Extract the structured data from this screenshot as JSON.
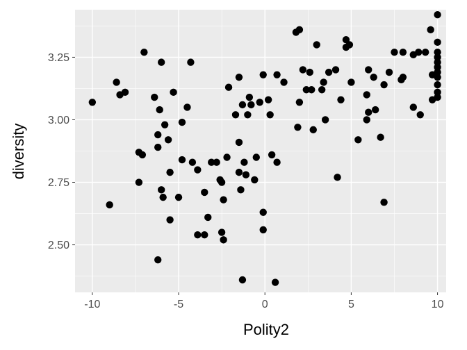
{
  "chart_data": {
    "type": "scatter",
    "xlabel": "Polity2",
    "ylabel": "diversity",
    "xlim": [
      -11,
      10.5
    ],
    "ylim": [
      2.31,
      3.44
    ],
    "x_ticks": [
      -10,
      -5,
      0,
      5,
      10
    ],
    "x_tick_labels": [
      "-10",
      "-5",
      "0",
      "5",
      "10"
    ],
    "y_ticks": [
      2.5,
      2.75,
      3.0,
      3.25
    ],
    "y_tick_labels": [
      "2.50",
      "2.75",
      "3.00",
      "3.25"
    ],
    "grid": true,
    "colors": {
      "panel": "#ebebeb",
      "grid_major": "#ffffff",
      "point": "#000000",
      "tick": "#333333"
    },
    "points": [
      [
        -10,
        3.07
      ],
      [
        -9,
        2.66
      ],
      [
        -8.6,
        3.15
      ],
      [
        -8.4,
        3.1
      ],
      [
        -8.1,
        3.11
      ],
      [
        -7.3,
        2.87
      ],
      [
        -7.3,
        2.75
      ],
      [
        -7.1,
        2.86
      ],
      [
        -7,
        3.27
      ],
      [
        -6.4,
        3.09
      ],
      [
        -6.2,
        2.94
      ],
      [
        -6.2,
        2.89
      ],
      [
        -6.2,
        2.44
      ],
      [
        -6.1,
        3.04
      ],
      [
        -6,
        3.23
      ],
      [
        -6,
        2.72
      ],
      [
        -5.9,
        2.69
      ],
      [
        -5.8,
        2.98
      ],
      [
        -5.6,
        2.92
      ],
      [
        -5.5,
        2.79
      ],
      [
        -5.5,
        2.6
      ],
      [
        -5.3,
        3.11
      ],
      [
        -5,
        2.69
      ],
      [
        -4.8,
        2.99
      ],
      [
        -4.8,
        2.84
      ],
      [
        -4.5,
        3.05
      ],
      [
        -4.3,
        3.23
      ],
      [
        -4.2,
        2.83
      ],
      [
        -3.9,
        2.8
      ],
      [
        -3.9,
        2.54
      ],
      [
        -3.5,
        2.71
      ],
      [
        -3.5,
        2.54
      ],
      [
        -3.3,
        2.61
      ],
      [
        -3.1,
        2.83
      ],
      [
        -2.8,
        2.83
      ],
      [
        -2.6,
        2.76
      ],
      [
        -2.5,
        2.75
      ],
      [
        -2.5,
        2.55
      ],
      [
        -2.4,
        2.68
      ],
      [
        -2.4,
        2.52
      ],
      [
        -2.2,
        2.85
      ],
      [
        -2.1,
        3.13
      ],
      [
        -1.7,
        3.02
      ],
      [
        -1.5,
        2.91
      ],
      [
        -1.5,
        2.79
      ],
      [
        -1.5,
        3.17
      ],
      [
        -1.4,
        2.72
      ],
      [
        -1.3,
        3.06
      ],
      [
        -1.3,
        2.36
      ],
      [
        -1.2,
        2.83
      ],
      [
        -1.1,
        2.78
      ],
      [
        -1,
        3.02
      ],
      [
        -0.9,
        3.09
      ],
      [
        -0.8,
        3.06
      ],
      [
        -0.6,
        2.76
      ],
      [
        -0.5,
        2.85
      ],
      [
        -0.3,
        3.07
      ],
      [
        -0.1,
        3.18
      ],
      [
        -0.1,
        2.63
      ],
      [
        -0.1,
        2.56
      ],
      [
        0.2,
        3.08
      ],
      [
        0.3,
        3.02
      ],
      [
        0.4,
        2.86
      ],
      [
        0.6,
        2.35
      ],
      [
        0.7,
        3.18
      ],
      [
        0.7,
        2.83
      ],
      [
        1.1,
        3.15
      ],
      [
        1.8,
        3.35
      ],
      [
        1.9,
        2.97
      ],
      [
        2,
        3.36
      ],
      [
        2,
        3.07
      ],
      [
        2.2,
        3.2
      ],
      [
        2.4,
        3.12
      ],
      [
        2.6,
        3.19
      ],
      [
        2.7,
        3.12
      ],
      [
        2.8,
        2.96
      ],
      [
        3,
        3.3
      ],
      [
        3.3,
        3.12
      ],
      [
        3.4,
        3.15
      ],
      [
        3.5,
        3.0
      ],
      [
        3.7,
        3.19
      ],
      [
        4.1,
        3.2
      ],
      [
        4.2,
        2.77
      ],
      [
        4.4,
        3.08
      ],
      [
        4.7,
        3.32
      ],
      [
        4.7,
        3.29
      ],
      [
        4.9,
        3.3
      ],
      [
        5,
        3.15
      ],
      [
        5.4,
        2.92
      ],
      [
        5.9,
        3.1
      ],
      [
        5.9,
        3.0
      ],
      [
        6,
        3.2
      ],
      [
        6,
        3.03
      ],
      [
        6.3,
        3.17
      ],
      [
        6.4,
        3.04
      ],
      [
        6.7,
        2.93
      ],
      [
        6.9,
        3.14
      ],
      [
        6.9,
        2.67
      ],
      [
        7.2,
        3.19
      ],
      [
        7.5,
        3.27
      ],
      [
        7.9,
        3.16
      ],
      [
        8,
        3.17
      ],
      [
        8,
        3.27
      ],
      [
        8.6,
        3.26
      ],
      [
        8.6,
        3.05
      ],
      [
        8.9,
        3.27
      ],
      [
        9,
        3.02
      ],
      [
        9.3,
        3.27
      ],
      [
        9.6,
        3.36
      ],
      [
        9.7,
        3.18
      ],
      [
        9.7,
        3.08
      ],
      [
        10,
        3.42
      ],
      [
        10,
        3.31
      ],
      [
        10,
        3.27
      ],
      [
        10,
        3.25
      ],
      [
        10,
        3.23
      ],
      [
        10,
        3.21
      ],
      [
        10,
        3.19
      ],
      [
        10,
        3.17
      ],
      [
        10,
        3.14
      ],
      [
        10,
        3.11
      ],
      [
        10,
        3.09
      ]
    ]
  }
}
